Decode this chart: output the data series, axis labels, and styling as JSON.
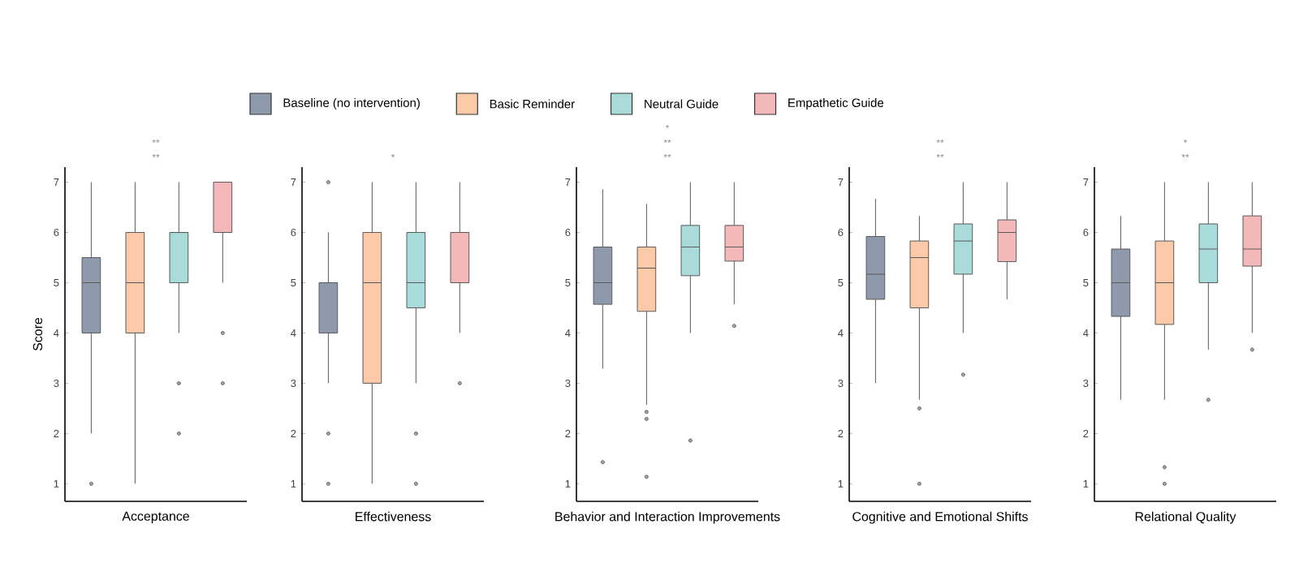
{
  "chart_data": [
    {
      "type": "box",
      "categories": [
        null,
        null,
        null,
        null
      ],
      "xlabel": "Acceptance",
      "ylabel": "Score",
      "ylim": [
        0.65,
        7.3
      ],
      "yticks": [
        1,
        2,
        3,
        4,
        5,
        6,
        7
      ],
      "legend": "top",
      "annotations": [
        "**",
        "**"
      ],
      "series": [
        {
          "name": "Baseline (no intervention)",
          "color": "#8e9aab",
          "boxes": [
            {
              "low": 2,
              "q1": 4,
              "median": 5,
              "q3": 5.5,
              "high": 7,
              "outliers": [
                1
              ]
            },
            null,
            null,
            null
          ]
        },
        {
          "name": "Basic Reminder",
          "color": "#fcc9a9",
          "boxes": [
            null,
            {
              "low": 1,
              "q1": 4,
              "median": 5,
              "q3": 6,
              "high": 7
            },
            null,
            null
          ]
        },
        {
          "name": "Neutral Guide",
          "color": "#a8dbd9",
          "boxes": [
            null,
            null,
            {
              "low": 4,
              "q1": 5,
              "median": 6,
              "q3": 6,
              "high": 7,
              "outliers": [
                3,
                2
              ]
            },
            null
          ]
        },
        {
          "name": "Empathetic Guide",
          "color": "#f2b8ba",
          "boxes": [
            null,
            null,
            null,
            {
              "low": 5,
              "q1": 6,
              "median": 6,
              "q3": 7,
              "high": 7,
              "outliers": [
                4,
                3
              ]
            }
          ]
        }
      ]
    },
    {
      "type": "box",
      "categories": [
        null,
        null,
        null,
        null
      ],
      "xlabel": "Effectiveness",
      "ylim": [
        0.65,
        7.3
      ],
      "yticks": [
        1,
        2,
        3,
        4,
        5,
        6,
        7
      ],
      "annotations": [
        "*"
      ],
      "series": [
        {
          "color": "#8e9aab",
          "boxes": [
            {
              "low": 3,
              "q1": 4,
              "median": 5,
              "q3": 5,
              "high": 6,
              "outliers": [
                7,
                2,
                1
              ]
            },
            null,
            null,
            null
          ]
        },
        {
          "color": "#fcc9a9",
          "boxes": [
            null,
            {
              "low": 1,
              "q1": 3,
              "median": 5,
              "q3": 6,
              "high": 7
            },
            null,
            null
          ]
        },
        {
          "color": "#a8dbd9",
          "boxes": [
            null,
            null,
            {
              "low": 3,
              "q1": 4.5,
              "median": 5,
              "q3": 6,
              "high": 7,
              "outliers": [
                2,
                1
              ]
            },
            null
          ]
        },
        {
          "color": "#f2b8ba",
          "boxes": [
            null,
            null,
            null,
            {
              "low": 4,
              "q1": 5,
              "median": 5,
              "q3": 6,
              "high": 7,
              "outliers": [
                3
              ]
            }
          ]
        }
      ]
    },
    {
      "type": "box",
      "categories": [
        null,
        null,
        null,
        null
      ],
      "xlabel": "Behavior and Interaction Improvements",
      "ylim": [
        0.65,
        7.3
      ],
      "yticks": [
        1,
        2,
        3,
        4,
        5,
        6,
        7
      ],
      "annotations": [
        "*",
        "**",
        "**"
      ],
      "series": [
        {
          "color": "#8e9aab",
          "boxes": [
            {
              "low": 3.29,
              "q1": 4.57,
              "median": 5,
              "q3": 5.71,
              "high": 6.86,
              "outliers": [
                1.43
              ]
            },
            null,
            null,
            null
          ]
        },
        {
          "color": "#fcc9a9",
          "boxes": [
            null,
            {
              "low": 2.57,
              "q1": 4.43,
              "median": 5.29,
              "q3": 5.71,
              "high": 6.57,
              "outliers": [
                2.43,
                2.29,
                1.14
              ]
            },
            null,
            null
          ]
        },
        {
          "color": "#a8dbd9",
          "boxes": [
            null,
            null,
            {
              "low": 4,
              "q1": 5.14,
              "median": 5.71,
              "q3": 6.14,
              "high": 7,
              "outliers": [
                1.86
              ]
            },
            null
          ]
        },
        {
          "color": "#f2b8ba",
          "boxes": [
            null,
            null,
            null,
            {
              "low": 4.57,
              "q1": 5.43,
              "median": 5.71,
              "q3": 6.14,
              "high": 7,
              "outliers": [
                4.14
              ]
            }
          ]
        }
      ]
    },
    {
      "type": "box",
      "categories": [
        null,
        null,
        null,
        null
      ],
      "xlabel": "Cognitive and Emotional Shifts",
      "ylim": [
        0.65,
        7.3
      ],
      "yticks": [
        1,
        2,
        3,
        4,
        5,
        6,
        7
      ],
      "annotations": [
        "**",
        "**"
      ],
      "series": [
        {
          "color": "#8e9aab",
          "boxes": [
            {
              "low": 3,
              "q1": 4.67,
              "median": 5.17,
              "q3": 5.92,
              "high": 6.67
            },
            null,
            null,
            null
          ]
        },
        {
          "color": "#fcc9a9",
          "boxes": [
            null,
            {
              "low": 2.67,
              "q1": 4.5,
              "median": 5.5,
              "q3": 5.83,
              "high": 6.33,
              "outliers": [
                2.5,
                1
              ]
            },
            null,
            null
          ]
        },
        {
          "color": "#a8dbd9",
          "boxes": [
            null,
            null,
            {
              "low": 4,
              "q1": 5.17,
              "median": 5.83,
              "q3": 6.17,
              "high": 7,
              "outliers": [
                3.17
              ]
            },
            null
          ]
        },
        {
          "color": "#f2b8ba",
          "boxes": [
            null,
            null,
            null,
            {
              "low": 4.67,
              "q1": 5.42,
              "median": 6,
              "q3": 6.25,
              "high": 7
            }
          ]
        }
      ]
    },
    {
      "type": "box",
      "categories": [
        null,
        null,
        null,
        null
      ],
      "xlabel": "Relational Quality",
      "ylim": [
        0.65,
        7.3
      ],
      "yticks": [
        1,
        2,
        3,
        4,
        5,
        6,
        7
      ],
      "annotations": [
        "*",
        "**"
      ],
      "series": [
        {
          "color": "#8e9aab",
          "boxes": [
            {
              "low": 2.67,
              "q1": 4.33,
              "median": 5,
              "q3": 5.67,
              "high": 6.33
            },
            null,
            null,
            null
          ]
        },
        {
          "color": "#fcc9a9",
          "boxes": [
            null,
            {
              "low": 2.67,
              "q1": 4.17,
              "median": 5,
              "q3": 5.83,
              "high": 7,
              "outliers": [
                1.33,
                1
              ]
            },
            null,
            null
          ]
        },
        {
          "color": "#a8dbd9",
          "boxes": [
            null,
            null,
            {
              "low": 3.67,
              "q1": 5,
              "median": 5.67,
              "q3": 6.17,
              "high": 7,
              "outliers": [
                2.67
              ]
            },
            null
          ]
        },
        {
          "color": "#f2b8ba",
          "boxes": [
            null,
            null,
            null,
            {
              "low": 4,
              "q1": 5.33,
              "median": 5.67,
              "q3": 6.33,
              "high": 7,
              "outliers": [
                3.67
              ]
            }
          ]
        }
      ]
    }
  ]
}
